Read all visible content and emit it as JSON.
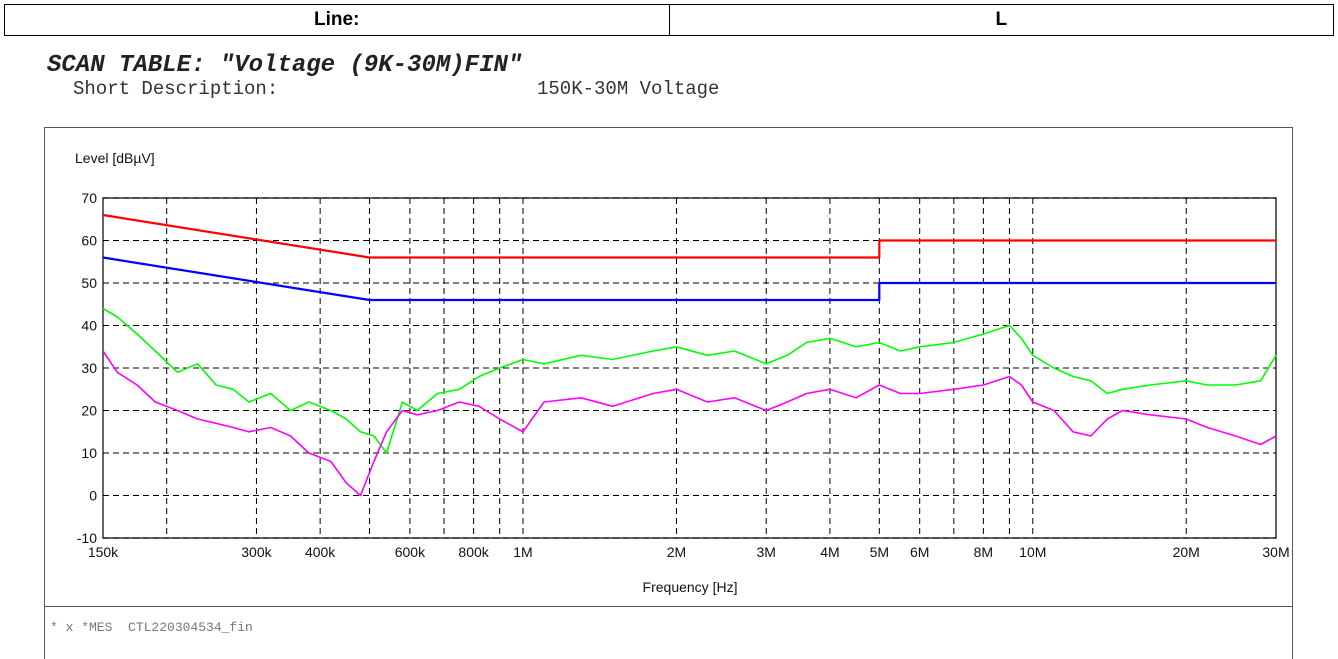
{
  "header": {
    "line_label": "Line:",
    "line_value": "L"
  },
  "scan_table_title": "SCAN TABLE: \"Voltage (9K-30M)FIN\"",
  "short_description": {
    "label": "Short Description:",
    "value": "150K-30M Voltage"
  },
  "mes_label": "* x *MES  CTL220304534_fin",
  "chart_data": {
    "type": "line",
    "xscale": "log",
    "xlim": [
      150000,
      30000000
    ],
    "ylim": [
      -10,
      70
    ],
    "ylabel": "Level [dBµV]",
    "xlabel": "Frequency [Hz]",
    "grid": true,
    "x_ticks": [
      {
        "label": "150k",
        "value": 150000
      },
      {
        "label": "300k",
        "value": 300000
      },
      {
        "label": "400k",
        "value": 400000
      },
      {
        "label": "600k",
        "value": 600000
      },
      {
        "label": "800k",
        "value": 800000
      },
      {
        "label": "1M",
        "value": 1000000
      },
      {
        "label": "2M",
        "value": 2000000
      },
      {
        "label": "3M",
        "value": 3000000
      },
      {
        "label": "4M",
        "value": 4000000
      },
      {
        "label": "5M",
        "value": 5000000
      },
      {
        "label": "6M",
        "value": 6000000
      },
      {
        "label": "8M",
        "value": 8000000
      },
      {
        "label": "10M",
        "value": 10000000
      },
      {
        "label": "20M",
        "value": 20000000
      },
      {
        "label": "30M",
        "value": 30000000
      }
    ],
    "y_ticks": [
      "70",
      "60",
      "50",
      "40",
      "30",
      "20",
      "10",
      "0",
      "-10"
    ],
    "series": [
      {
        "color": "#ff0000",
        "x": [
          150000,
          500000,
          500000,
          5000000,
          5000000,
          30000000
        ],
        "y": [
          66,
          56,
          56,
          56,
          60,
          60
        ]
      },
      {
        "color": "#0000ff",
        "x": [
          150000,
          500000,
          500000,
          5000000,
          5000000,
          30000000
        ],
        "y": [
          56,
          46,
          46,
          46,
          50,
          50
        ]
      },
      {
        "color": "#00ff00",
        "x": [
          150000,
          160000,
          175000,
          190000,
          210000,
          230000,
          250000,
          270000,
          290000,
          320000,
          350000,
          380000,
          420000,
          450000,
          480000,
          510000,
          540000,
          580000,
          620000,
          680000,
          750000,
          820000,
          900000,
          1000000,
          1100000,
          1300000,
          1500000,
          1800000,
          2000000,
          2300000,
          2600000,
          3000000,
          3300000,
          3600000,
          4000000,
          4500000,
          5000000,
          5500000,
          6000000,
          7000000,
          8000000,
          9000000,
          9500000,
          10000000,
          11000000,
          12000000,
          13000000,
          14000000,
          15000000,
          17000000,
          20000000,
          22000000,
          25000000,
          28000000,
          30000000
        ],
        "y": [
          44,
          42,
          38,
          34,
          29,
          31,
          26,
          25,
          22,
          24,
          20,
          22,
          20,
          18,
          15,
          14,
          10,
          22,
          20,
          24,
          25,
          28,
          30,
          32,
          31,
          33,
          32,
          34,
          35,
          33,
          34,
          31,
          33,
          36,
          37,
          35,
          36,
          34,
          35,
          36,
          38,
          40,
          37,
          33,
          30,
          28,
          27,
          24,
          25,
          26,
          27,
          26,
          26,
          27,
          33
        ]
      },
      {
        "color": "#ff00ff",
        "x": [
          150000,
          160000,
          175000,
          190000,
          210000,
          230000,
          250000,
          270000,
          290000,
          320000,
          350000,
          380000,
          420000,
          450000,
          480000,
          510000,
          540000,
          580000,
          620000,
          680000,
          750000,
          820000,
          900000,
          1000000,
          1100000,
          1300000,
          1500000,
          1800000,
          2000000,
          2300000,
          2600000,
          3000000,
          3300000,
          3600000,
          4000000,
          4500000,
          5000000,
          5500000,
          6000000,
          7000000,
          8000000,
          9000000,
          9500000,
          10000000,
          11000000,
          12000000,
          13000000,
          14000000,
          15000000,
          17000000,
          20000000,
          22000000,
          25000000,
          28000000,
          30000000
        ],
        "y": [
          34,
          29,
          26,
          22,
          20,
          18,
          17,
          16,
          15,
          16,
          14,
          10,
          8,
          3,
          0,
          8,
          15,
          20,
          19,
          20,
          22,
          21,
          18,
          15,
          22,
          23,
          21,
          24,
          25,
          22,
          23,
          20,
          22,
          24,
          25,
          23,
          26,
          24,
          24,
          25,
          26,
          28,
          26,
          22,
          20,
          15,
          14,
          18,
          20,
          19,
          18,
          16,
          14,
          12,
          14
        ]
      }
    ]
  }
}
